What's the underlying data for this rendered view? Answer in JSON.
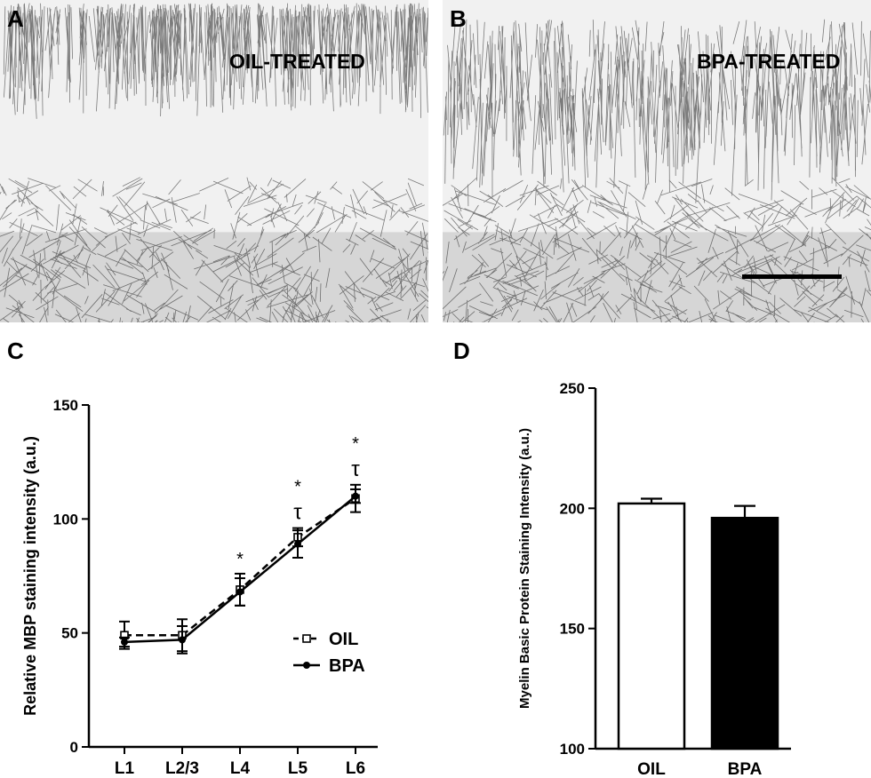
{
  "panels": {
    "a": {
      "letter": "A",
      "label": "OIL-TREATED"
    },
    "b": {
      "letter": "B",
      "label": "BPA-TREATED"
    },
    "c": {
      "letter": "C"
    },
    "d": {
      "letter": "D"
    }
  },
  "colors": {
    "stain": "#1a1a1a",
    "bar_oil_fill": "#ffffff",
    "bar_bpa_fill": "#000000"
  },
  "chart_data": [
    {
      "type": "line",
      "ylabel": "Relative MBP staining intensity (a.u.)",
      "xlabel": "",
      "categories": [
        "L1",
        "L2/3",
        "L4",
        "L5",
        "L6"
      ],
      "ylim": [
        0,
        150
      ],
      "yticks": [
        0,
        50,
        100,
        150
      ],
      "legend_position": "center-right",
      "series": [
        {
          "name": "OIL",
          "marker": "open-square",
          "line_style": "dashed",
          "values": [
            49,
            49,
            69,
            92,
            109
          ],
          "errors": [
            6,
            7,
            7,
            4,
            6
          ]
        },
        {
          "name": "BPA",
          "marker": "filled-circle",
          "line_style": "solid",
          "values": [
            46,
            47,
            68,
            89,
            110
          ],
          "errors": [
            2,
            6,
            6,
            6,
            3
          ]
        }
      ],
      "annotations": [
        {
          "category": "L4",
          "text": "*"
        },
        {
          "category": "L5",
          "text": "*"
        },
        {
          "category": "L5",
          "text": "τ"
        },
        {
          "category": "L6",
          "text": "*"
        },
        {
          "category": "L6",
          "text": "τ"
        }
      ]
    },
    {
      "type": "bar",
      "ylabel": "Myelin Basic Protein Staining Intensity (a.u.)",
      "xlabel": "",
      "categories": [
        "OIL",
        "BPA"
      ],
      "values": [
        202,
        196
      ],
      "errors": [
        2,
        5
      ],
      "ylim": [
        100,
        250
      ],
      "yticks": [
        100,
        150,
        200,
        250
      ]
    }
  ]
}
